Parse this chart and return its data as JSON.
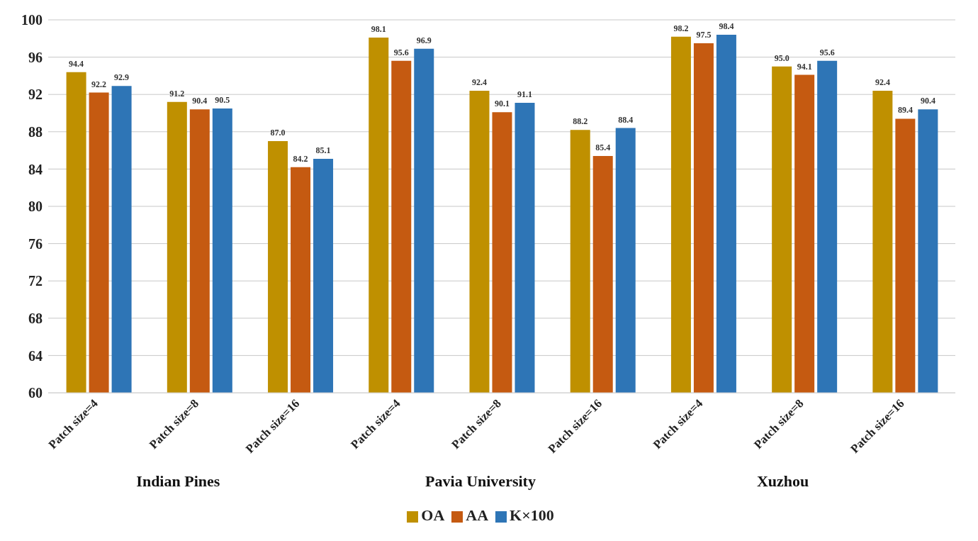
{
  "chart_data": {
    "type": "bar",
    "categories": [
      "Patch size=4",
      "Patch size=8",
      "Patch size=16",
      "Patch size=4",
      "Patch size=8",
      "Patch size=16",
      "Patch size=4",
      "Patch size=8",
      "Patch size=16"
    ],
    "series": [
      {
        "name": "OA",
        "color": "#bf9000",
        "values": [
          94.4,
          91.2,
          87.0,
          98.1,
          92.4,
          88.2,
          98.2,
          95.0,
          92.4
        ],
        "value_labels": [
          "94.4",
          "91.2",
          "87.0",
          "98.1",
          "92.4",
          "88.2",
          "98.2",
          "95.0",
          "92.4"
        ]
      },
      {
        "name": "AA",
        "color": "#c55a11",
        "values": [
          92.2,
          90.4,
          84.2,
          95.6,
          90.1,
          85.4,
          97.5,
          94.1,
          89.4
        ],
        "value_labels": [
          "92.2",
          "90.4",
          "84.2",
          "95.6",
          "90.1",
          "85.4",
          "97.5",
          "94.1",
          "89.4"
        ]
      },
      {
        "name": "K×100",
        "color": "#2e75b6",
        "values": [
          92.9,
          90.5,
          85.1,
          96.9,
          91.1,
          88.4,
          98.4,
          95.6,
          90.4
        ],
        "value_labels": [
          "92.9",
          "90.5",
          "85.1",
          "96.9",
          "91.1",
          "88.4",
          "98.4",
          "95.6",
          "90.4"
        ]
      }
    ],
    "annotations": [
      "Indian Pines",
      "Pavia University",
      "Xuzhou"
    ],
    "ylim": [
      60,
      100
    ],
    "yticks": [
      60,
      64,
      68,
      72,
      76,
      80,
      84,
      88,
      92,
      96,
      100
    ],
    "grid": "y",
    "legend": "bottom"
  }
}
